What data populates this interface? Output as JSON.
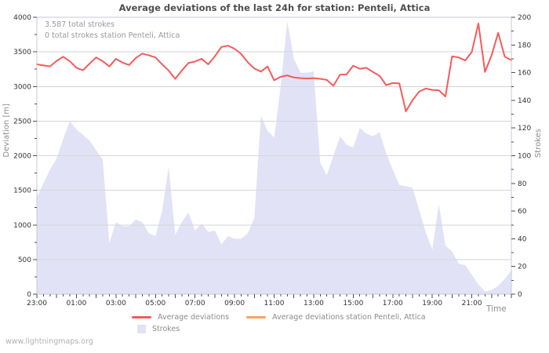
{
  "watermark": "www.lightningmaps.org",
  "style": {
    "accent_red": "#f45b5b",
    "accent_orange": "#f7a35c",
    "area_lavender": "#e2e2f6",
    "grid_gray": "#d6d6d6",
    "border_gray": "#c9c9d8",
    "tick_dark": "#4d4d4d",
    "label_dark": "#333333",
    "muted_gray": "#8c8c8c",
    "annotation_gray": "#999999",
    "title_gray": "#4f4f4f",
    "watermark_gray": "#b1b1b1",
    "background": "#ffffff"
  },
  "chart_data": {
    "type": "line",
    "title": "Average deviations of the last 24h for station: Penteli, Attica",
    "annotations": [
      "3.587 total strokes",
      "0 total strokes station Penteli, Attica"
    ],
    "x_axis": {
      "title": "Time",
      "start": "23:00",
      "end": "23:00",
      "interval_minutes": 20,
      "points_per_hour": 3,
      "labeled_every_hours": 2,
      "tick_labels": [
        "23:00",
        "01:00",
        "03:00",
        "05:00",
        "07:00",
        "09:00",
        "11:00",
        "13:00",
        "15:00",
        "17:00",
        "19:00",
        "21:00"
      ]
    },
    "left_axis": {
      "title": "Deviation [m]",
      "range": [
        0,
        4000
      ],
      "major_step": 500,
      "minor_step": 250,
      "tick_labels": [
        "0",
        "500",
        "1000",
        "1500",
        "2000",
        "2500",
        "3000",
        "3500",
        "4000"
      ]
    },
    "right_axis": {
      "title": "Strokes",
      "range": [
        0,
        200
      ],
      "major_step": 20,
      "minor_step": 10,
      "tick_labels": [
        "0",
        "20",
        "40",
        "60",
        "80",
        "100",
        "120",
        "140",
        "160",
        "180",
        "200"
      ]
    },
    "grid": "horizontal-only",
    "legend_position": "bottom",
    "series": [
      {
        "name": "Average deviations",
        "type": "line",
        "axis": "left",
        "color": "#f45b5b",
        "values": [
          3320,
          3305,
          3290,
          3370,
          3430,
          3365,
          3270,
          3235,
          3330,
          3420,
          3365,
          3290,
          3400,
          3345,
          3310,
          3410,
          3475,
          3450,
          3420,
          3320,
          3230,
          3110,
          3230,
          3340,
          3360,
          3400,
          3320,
          3435,
          3570,
          3590,
          3545,
          3470,
          3350,
          3260,
          3215,
          3290,
          3090,
          3140,
          3160,
          3130,
          3120,
          3115,
          3120,
          3110,
          3095,
          3010,
          3170,
          3175,
          3300,
          3255,
          3270,
          3210,
          3155,
          3020,
          3050,
          3045,
          2640,
          2800,
          2925,
          2970,
          2950,
          2945,
          2855,
          3435,
          3420,
          3375,
          3500,
          3910,
          3210,
          3450,
          3775,
          3430,
          3380
        ]
      },
      {
        "name": "Average deviations station Penteli, Attica",
        "type": "line",
        "axis": "left",
        "color": "#f7a35c",
        "values": []
      },
      {
        "name": "Strokes",
        "type": "area",
        "axis": "right",
        "color": "#e2e2f6",
        "values": [
          70,
          80,
          90,
          98,
          112,
          125,
          119,
          115,
          111,
          104,
          97,
          37,
          52,
          49,
          49,
          54,
          52,
          44,
          42,
          60,
          92,
          43,
          52,
          59,
          46,
          51,
          45,
          46,
          36,
          42,
          40,
          40,
          44,
          55,
          129,
          118,
          113,
          150,
          197,
          170,
          160,
          160,
          161,
          95,
          86,
          100,
          114,
          108,
          106,
          120,
          116,
          114,
          117,
          102,
          90,
          79,
          78,
          77,
          61,
          45,
          32,
          65,
          35,
          31,
          22,
          21,
          14,
          7,
          2,
          3,
          6,
          11,
          17
        ]
      }
    ]
  }
}
